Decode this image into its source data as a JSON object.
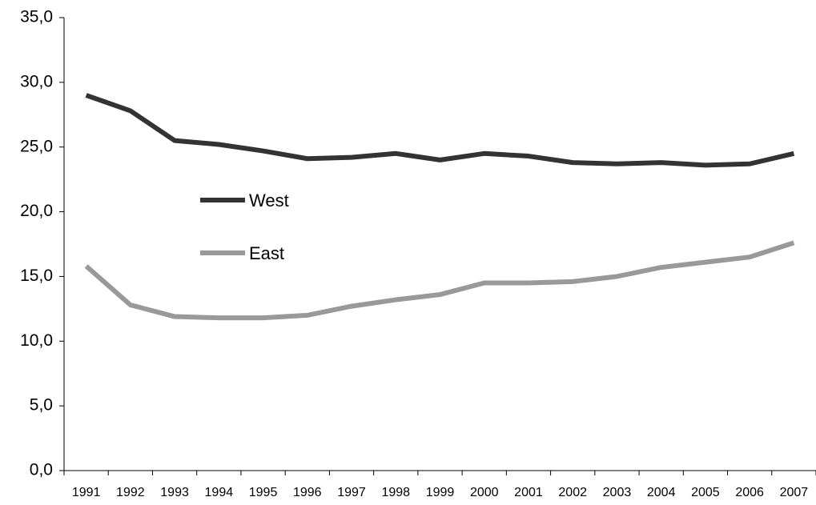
{
  "chart_data": {
    "type": "line",
    "categories": [
      "1991",
      "1992",
      "1993",
      "1994",
      "1995",
      "1996",
      "1997",
      "1998",
      "1999",
      "2000",
      "2001",
      "2002",
      "2003",
      "2004",
      "2005",
      "2006",
      "2007"
    ],
    "series": [
      {
        "name": "West",
        "color": "#333333",
        "values": [
          29.0,
          27.8,
          25.5,
          25.2,
          24.7,
          24.1,
          24.2,
          24.5,
          24.0,
          24.5,
          24.3,
          23.8,
          23.7,
          23.8,
          23.6,
          23.7,
          24.5
        ]
      },
      {
        "name": "East",
        "color": "#999999",
        "values": [
          15.8,
          12.8,
          11.9,
          11.8,
          11.8,
          12.0,
          12.7,
          13.2,
          13.6,
          14.5,
          14.5,
          14.6,
          15.0,
          15.7,
          16.1,
          16.5,
          17.6
        ]
      }
    ],
    "ylim": [
      0,
      35
    ],
    "yticks": [
      {
        "value": 0,
        "label": "0,0"
      },
      {
        "value": 5,
        "label": "5,0"
      },
      {
        "value": 10,
        "label": "10,0"
      },
      {
        "value": 15,
        "label": "15,0"
      },
      {
        "value": 20,
        "label": "20,0"
      },
      {
        "value": 25,
        "label": "25,0"
      },
      {
        "value": 30,
        "label": "30,0"
      },
      {
        "value": 35,
        "label": "35,0"
      }
    ],
    "grid": false
  }
}
